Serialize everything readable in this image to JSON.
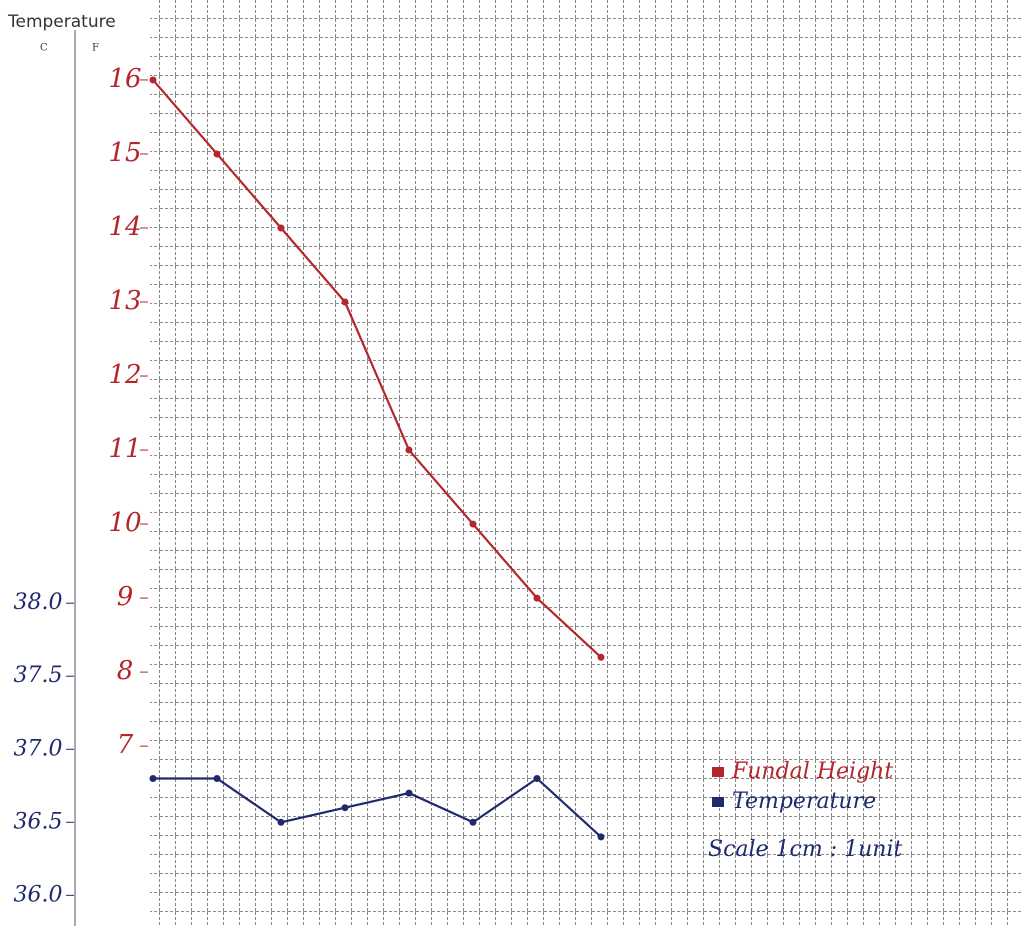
{
  "chart_data": {
    "type": "line",
    "title": "Temperature",
    "axis_headers": [
      "C",
      "F"
    ],
    "categories": [
      null,
      null,
      null,
      null,
      null,
      null,
      null,
      null
    ],
    "series": [
      {
        "name": "Fundal Height",
        "color": "#b3262b",
        "values": [
          16,
          15,
          14,
          13,
          11,
          10,
          9,
          8.2
        ]
      },
      {
        "name": "Temperature",
        "color": "#1f2a6e",
        "axis": "y2",
        "values": [
          36.8,
          36.8,
          36.5,
          36.6,
          36.7,
          36.5,
          36.8,
          36.4
        ]
      }
    ],
    "ylim": [
      4.57,
      17.08
    ],
    "yticks": [
      7,
      8,
      9,
      10,
      11,
      12,
      13,
      14,
      15,
      16
    ],
    "y2lim": [
      35.79,
      42.13
    ],
    "y2ticks": [
      {
        "value": 36,
        "label": "36.0"
      },
      36.5,
      {
        "value": 37,
        "label": "37.0"
      },
      37.5,
      {
        "value": 38,
        "label": "38.0"
      }
    ],
    "note": "Scale 1cm : 1unit",
    "grid": true
  }
}
